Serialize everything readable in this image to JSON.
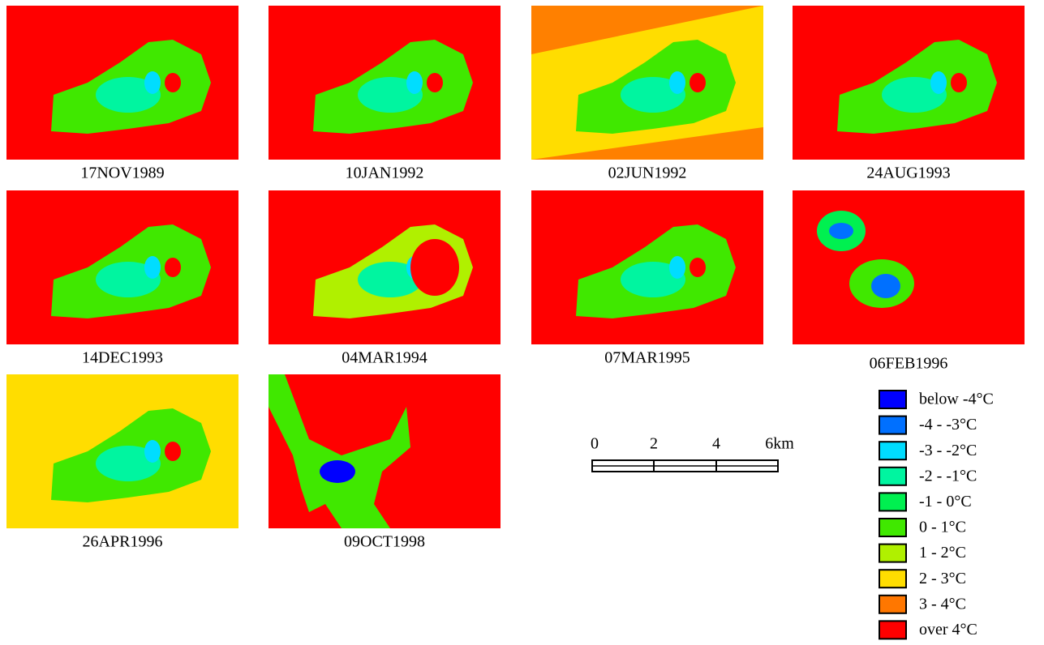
{
  "panels": [
    {
      "date": "17NOV1989"
    },
    {
      "date": "10JAN1992"
    },
    {
      "date": "02JUN1992"
    },
    {
      "date": "24AUG1993"
    },
    {
      "date": "14DEC1993"
    },
    {
      "date": "04MAR1994"
    },
    {
      "date": "07MAR1995"
    },
    {
      "date": "06FEB1996"
    },
    {
      "date": "26APR1996"
    },
    {
      "date": "09OCT1998"
    }
  ],
  "scale_bar": {
    "labels": [
      "0",
      "2",
      "4",
      "6km"
    ]
  },
  "legend": {
    "items": [
      {
        "label": "below -4°C",
        "color": "#0000ff"
      },
      {
        "label": "-4 - -3°C",
        "color": "#0070ff"
      },
      {
        "label": "-3 - -2°C",
        "color": "#00ddff"
      },
      {
        "label": "-2 - -1°C",
        "color": "#00f5a0"
      },
      {
        "label": "-1 - 0°C",
        "color": "#00f050"
      },
      {
        "label": "0 - 1°C",
        "color": "#40e800"
      },
      {
        "label": "1 - 2°C",
        "color": "#b0f000"
      },
      {
        "label": "2 - 3°C",
        "color": "#ffdd00"
      },
      {
        "label": "3 - 4°C",
        "color": "#ff7700"
      },
      {
        "label": "over 4°C",
        "color": "#ff0000"
      }
    ]
  }
}
